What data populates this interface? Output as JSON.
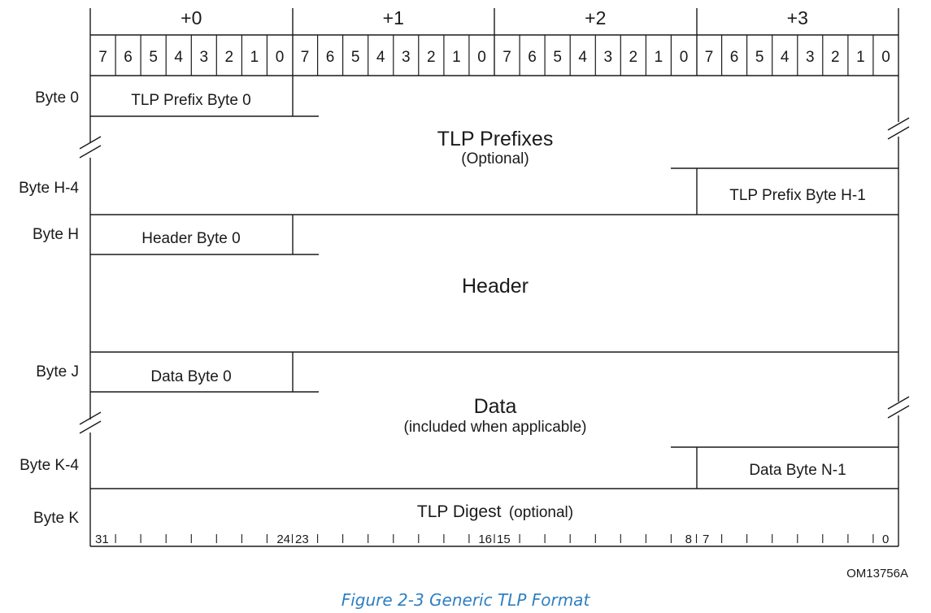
{
  "byte_offsets": [
    "+0",
    "+1",
    "+2",
    "+3"
  ],
  "bit_labels": [
    "7",
    "6",
    "5",
    "4",
    "3",
    "2",
    "1",
    "0"
  ],
  "row_labels": {
    "byte_0": "Byte 0",
    "byte_h4": "Byte H-4",
    "byte_h": "Byte H",
    "byte_j": "Byte J",
    "byte_k4": "Byte K-4",
    "byte_k": "Byte K"
  },
  "fields": {
    "tlp_prefix_byte_0": "TLP Prefix Byte 0",
    "tlp_prefixes": "TLP Prefixes",
    "tlp_prefixes_note": "(Optional)",
    "tlp_prefix_byte_h1": "TLP Prefix Byte H-1",
    "header_byte_0": "Header Byte 0",
    "header": "Header",
    "data_byte_0": "Data Byte 0",
    "data": "Data",
    "data_note": "(included when applicable)",
    "data_byte_n1": "Data Byte N-1",
    "tlp_digest": "TLP Digest",
    "tlp_digest_note": "(optional)"
  },
  "bit_numbers": [
    "31",
    "24",
    "23",
    "16",
    "15",
    "8",
    "7",
    "0"
  ],
  "figure_id": "OM13756A",
  "caption": "Figure  2-3  Generic TLP Format"
}
